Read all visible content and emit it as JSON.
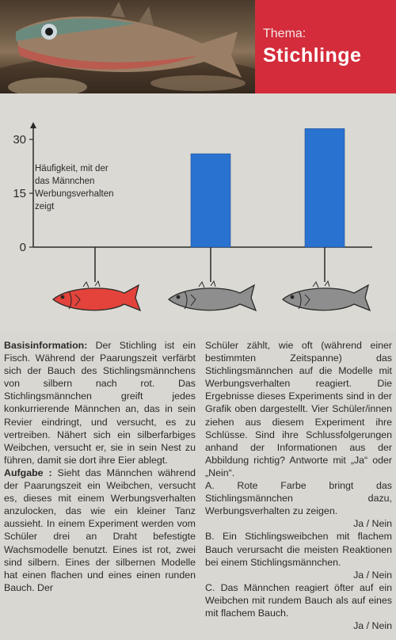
{
  "header": {
    "theme_label": "Thema:",
    "theme_title": "Stichlinge",
    "accent": "#d42c3b"
  },
  "chart_data": {
    "type": "bar",
    "categories": [
      "rotes Modell",
      "flacher Bauch",
      "runder Bauch"
    ],
    "values": [
      0,
      26,
      33
    ],
    "ylim": [
      0,
      35
    ],
    "yticks": [
      "0",
      "15",
      "30"
    ],
    "ylabel": "Häufigkeit, mit der das Männchen Werbungsverhalten zeigt",
    "ylabel_lines": [
      "Häufigkeit, mit der",
      "das Männchen",
      "Werbungsverhalten",
      "zeigt"
    ],
    "bar_color": "#2a72d0",
    "fish_colors": [
      "#e3433a",
      "#8e8e8e",
      "#8e8e8e"
    ],
    "grid": false
  },
  "text": {
    "basis_label": "Basisinformation:",
    "basis_body": " Der Stichling ist ein Fisch. Während der Paarungszeit verfärbt sich der Bauch des Stichlingsmännchens von silbern nach rot. Das Stichlingsmännchen greift jedes konkurrierende Männchen an, das in sein Revier eindringt, und versucht, es zu vertreiben. Nähert sich ein silberfarbiges Weibchen, versucht er, sie in sein Nest zu führen, damit sie dort ihre Eier ablegt.",
    "task_label": "Aufgabe :",
    "task_body_left": " Sieht das Männchen während der Paarungszeit ein Weibchen, versucht es, dieses mit einem Werbungsverhalten anzulocken, das wie ein kleiner Tanz aussieht. In einem Experiment werden vom Schüler drei an Draht befestigte Wachsmodelle benutzt. Eines ist rot, zwei sind silbern. Eines der silbernen Modelle hat einen flachen und eines einen runden Bauch. Der",
    "task_body_right": "Schüler zählt, wie oft (während einer bestimmten Zeitspanne) das Stichlingsmännchen auf die Modelle mit Werbungsverhalten reagiert. Die Ergebnisse dieses Experiments sind in der Grafik oben dargestellt. Vier Schüler/innen ziehen aus diesem Experiment ihre Schlüsse. Sind ihre Schlussfolgerungen anhand der Informationen aus der Abbildung richtig? Antworte mit „Ja“ oder „Nein“.",
    "q_a": "A. Rote Farbe bringt das Stichlingsmännchen dazu, Werbungsverhalten zu zeigen.",
    "q_b": "B. Ein Stichlingsweibchen mit flachem Bauch verursacht die meisten Reaktionen bei einem Stichlingsmännchen.",
    "q_c": "C. Das Männchen reagiert öfter auf ein Weibchen mit rundem Bauch als auf eines mit flachem Bauch.",
    "answer": "Ja / Nein"
  }
}
